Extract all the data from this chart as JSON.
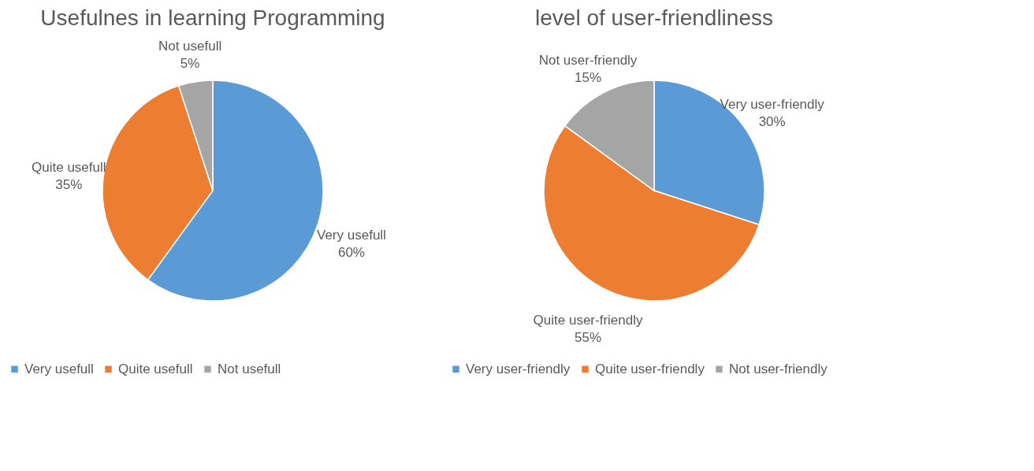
{
  "chart_data": [
    {
      "type": "pie",
      "title": "Usefulnes in learning Programming",
      "categories": [
        "Very usefull",
        "Quite usefull",
        "Not usefull"
      ],
      "values": [
        60,
        35,
        5
      ],
      "value_labels": [
        "60%",
        "35%",
        "5%"
      ],
      "colors": [
        "#5b9bd5",
        "#ed7d31",
        "#a5a5a5"
      ],
      "legend": "bottom"
    },
    {
      "type": "pie",
      "title": "level of user-friendliness",
      "categories": [
        "Very user-friendly",
        "Quite user-friendly",
        "Not user-friendly"
      ],
      "values": [
        30,
        55,
        15
      ],
      "value_labels": [
        "30%",
        "55%",
        "15%"
      ],
      "colors": [
        "#5b9bd5",
        "#ed7d31",
        "#a5a5a5"
      ],
      "legend": "bottom"
    }
  ]
}
